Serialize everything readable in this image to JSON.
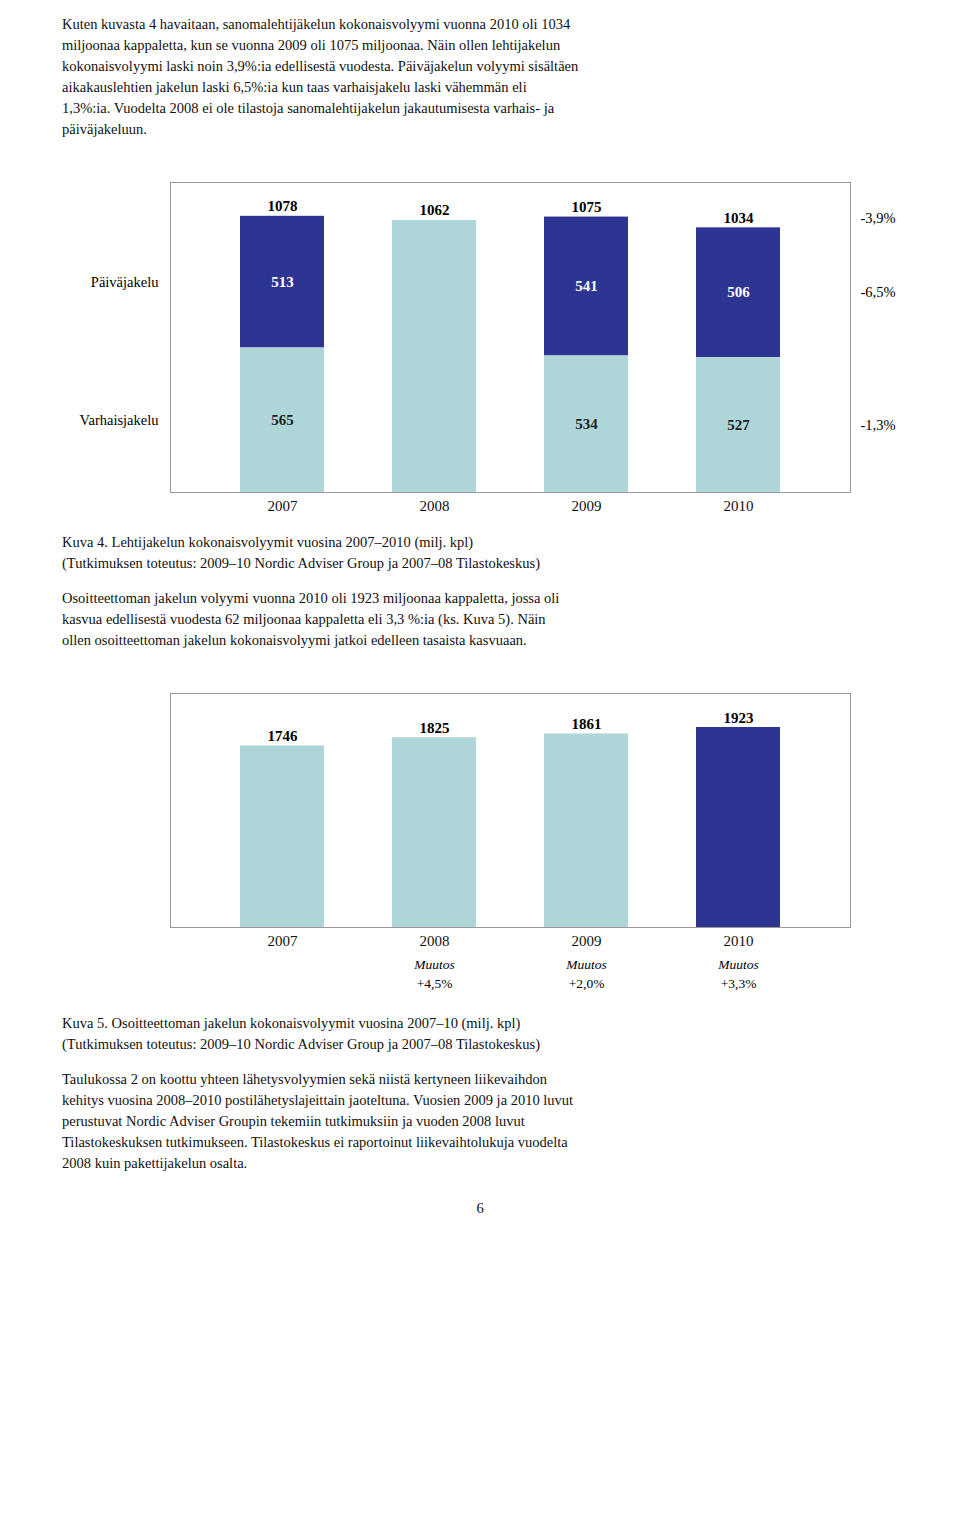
{
  "intro_text": "Kuten kuvasta 4 havaitaan, sanomalehtijäkelun kokonaisvolyymi vuonna 2010 oli 1034\nmiljoonaa kappaletta, kun se vuonna 2009 oli 1075 miljoonaa. Näin ollen lehtijakelun\nkokonaisvolyymi laski noin 3,9%:ia edellisestä vuodesta. Päiväjakelun volyymi sisältäen\naikakauslehtien jakelun laski 6,5%:ia kun taas varhaisjakelu laski vähemmän eli\n1,3%:ia. Vuodelta 2008 ei ole tilastoja sanomalehtijakelun jakautumisesta varhais- ja\npäiväjakeluun.",
  "middle_text": "Osoitteettoman jakelun volyymi vuonna 2010 oli 1923 miljoonaa kappaletta, jossa oli\nkasvua edellisestä vuodesta 62 miljoonaa kappaletta eli 3,3 %:ia (ks. Kuva 5). Näin\nollen osoitteettoman jakelun kokonaisvolyymi jatkoi edelleen tasaista kasvuaan.",
  "bottom_text": "Taulukossa 2 on koottu yhteen lähetysvolyymien sekä niistä kertyneen liikevaihdon\nkehitys vuosina 2008–2010 postilähetyslajeittain jaoteltuna. Vuosien 2009 ja 2010 luvut\nperustuvat Nordic Adviser Groupin tekemiin tutkimuksiin ja vuoden 2008 luvut\nTilastokeskuksen tutkimukseen. Tilastokeskus ei raportoinut liikevaihtolukuja vuodelta\n2008 kuin pakettijakelun osalta.",
  "page_number": "6",
  "chart_data": [
    {
      "type": "bar",
      "stacked": true,
      "title": "Kuva 4. Lehtijakelun kokonaisvolyymit vuosina 2007–2010 (milj. kpl)",
      "subtitle": "(Tutkimuksen toteutus: 2009–10 Nordic Adviser Group ja 2007–08 Tilastokeskus)",
      "categories": [
        "2007",
        "2008",
        "2009",
        "2010"
      ],
      "series": [
        {
          "name": "Varhaisjakelu",
          "color": "#aed6d8",
          "values": [
            565,
            null,
            534,
            527
          ]
        },
        {
          "name": "Päiväjakelu",
          "color": "#2d3491",
          "values": [
            513,
            null,
            541,
            506
          ]
        }
      ],
      "totals": [
        1078,
        1062,
        1075,
        1034
      ],
      "annotations": [
        "-3,9%",
        "-6,5%",
        "-1,3%"
      ],
      "ylim": [
        0,
        1210
      ],
      "yticks": [],
      "tick_labels": "x",
      "grid": false,
      "data_labels": true
    },
    {
      "type": "bar",
      "title": "Kuva 5. Osoitteettoman jakelun kokonaisvolyymit vuosina 2007–10 (milj. kpl)",
      "subtitle": "(Tutkimuksen toteutus: 2009–10 Nordic Adviser Group ja 2007–08 Tilastokeskus)",
      "categories": [
        "2007",
        "2008",
        "2009",
        "2010"
      ],
      "values": [
        1746,
        1825,
        1861,
        1923
      ],
      "colors": [
        "#aed6d8",
        "#aed6d8",
        "#aed6d8",
        "#2d3491"
      ],
      "annotations": [
        {
          "category": "2008",
          "texts": [
            "Muutos",
            "+4,5%"
          ]
        },
        {
          "category": "2009",
          "texts": [
            "Muutos",
            "+2,0%"
          ]
        },
        {
          "category": "2010",
          "texts": [
            "Muutos",
            "+3,3%"
          ]
        }
      ],
      "ylim": [
        0,
        2250
      ],
      "yticks": [],
      "tick_labels": "x",
      "grid": false,
      "data_labels": true
    }
  ]
}
